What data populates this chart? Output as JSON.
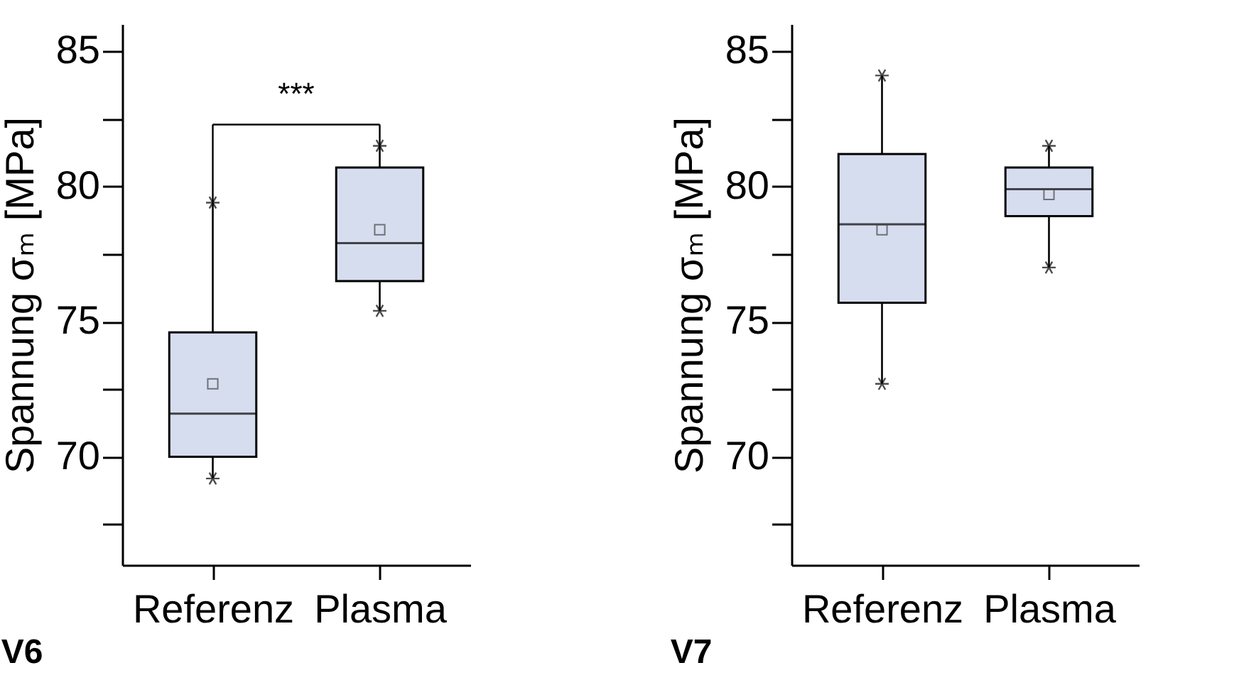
{
  "chart_data": [
    {
      "type": "box",
      "title": "V6",
      "ylabel": "Spannung σₘ [MPa]",
      "categories": [
        "Referenz",
        "Plasma"
      ],
      "series": [
        {
          "color": "#d6ddef",
          "boxes": [
            {
              "low": 69.2,
              "q1": 70.0,
              "median": 71.6,
              "q3": 74.6,
              "high": 79.4,
              "mean": 72.7
            },
            {
              "low": 75.4,
              "q1": 76.5,
              "median": 77.9,
              "q3": 80.7,
              "high": 81.5,
              "mean": 78.4
            }
          ]
        }
      ],
      "ylim": [
        66,
        86
      ],
      "yticks": [
        {
          "value": 67.5,
          "label": null
        },
        70,
        {
          "value": 72.5,
          "label": null
        },
        75,
        {
          "value": 77.5,
          "label": null
        },
        80,
        {
          "value": 82.5,
          "label": null
        },
        85
      ],
      "annotations": [
        "***"
      ]
    },
    {
      "type": "box",
      "title": "V7",
      "ylabel": "Spannung σₘ [MPa]",
      "categories": [
        "Referenz",
        "Plasma"
      ],
      "series": [
        {
          "color": "#d6ddef",
          "boxes": [
            {
              "low": 72.7,
              "q1": 75.7,
              "median": 78.6,
              "q3": 81.2,
              "high": 84.1,
              "mean": 78.4
            },
            {
              "low": 77.0,
              "q1": 78.9,
              "median": 79.9,
              "q3": 80.7,
              "high": 81.5,
              "mean": 79.7
            }
          ]
        }
      ],
      "ylim": [
        66,
        86
      ],
      "yticks": [
        {
          "value": 67.5,
          "label": null
        },
        70,
        {
          "value": 72.5,
          "label": null
        },
        75,
        {
          "value": 77.5,
          "label": null
        },
        80,
        {
          "value": 82.5,
          "label": null
        },
        85
      ]
    }
  ]
}
